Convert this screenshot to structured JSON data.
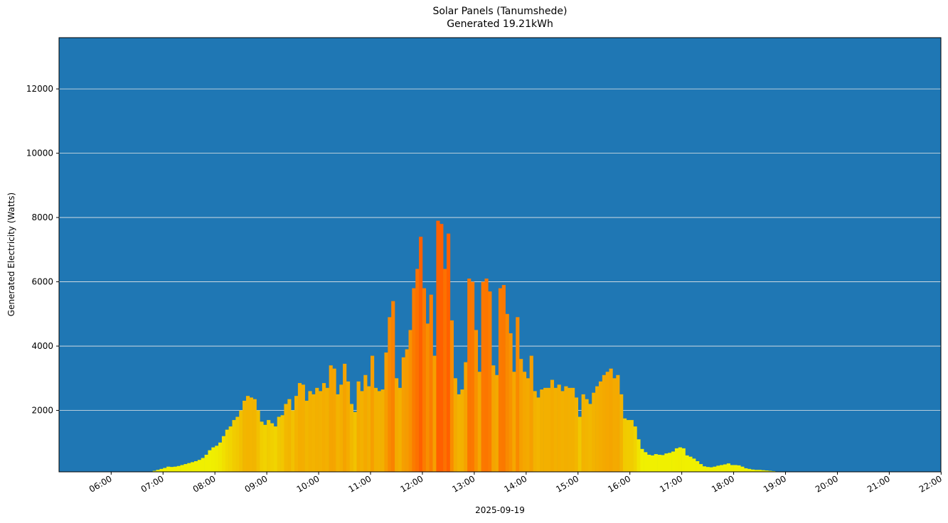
{
  "header": {
    "title_line1": "Solar Panels (Tanumshede)",
    "title_line2": "Generated 19.21kWh"
  },
  "axes": {
    "ylabel": "Generated Electricity (Watts)",
    "xlabel": "2025-09-19",
    "background_color": "#1f77b4",
    "grid_color": "#e8e8e8"
  },
  "colors": {
    "low": "#f0f000",
    "mid": "#f2b800",
    "high": "#ff6000"
  },
  "chart_data": {
    "type": "bar",
    "title": "Solar Panels (Tanumshede)\nGenerated 19.21kWh",
    "subtitle": "Generated 19.21kWh",
    "xlabel": "2025-09-19",
    "ylabel": "Generated Electricity (Watts)",
    "ylim": [
      90,
      13500
    ],
    "xlim": [
      "05:00",
      "22:00"
    ],
    "grid": "y-axis, white lines",
    "legend": null,
    "y_ticks": [
      2000,
      4000,
      6000,
      8000,
      10000,
      12000
    ],
    "x_ticks": [
      "06:00",
      "07:00",
      "08:00",
      "09:00",
      "10:00",
      "11:00",
      "12:00",
      "13:00",
      "14:00",
      "15:00",
      "16:00",
      "17:00",
      "18:00",
      "19:00",
      "20:00",
      "21:00",
      "22:00"
    ],
    "total_generated_kwh": 19.21,
    "interval_minutes": 4,
    "start_time": "06:44",
    "values": [
      100,
      120,
      150,
      180,
      210,
      250,
      240,
      250,
      270,
      300,
      330,
      360,
      390,
      420,
      460,
      520,
      620,
      760,
      850,
      900,
      1000,
      1200,
      1400,
      1500,
      1700,
      1800,
      2000,
      2300,
      2450,
      2400,
      2350,
      2000,
      1650,
      1550,
      1700,
      1600,
      1500,
      1800,
      1850,
      2200,
      2350,
      2000,
      2450,
      2850,
      2800,
      2300,
      2600,
      2500,
      2700,
      2600,
      2850,
      2700,
      3400,
      3300,
      2500,
      2800,
      3450,
      2900,
      2200,
      1950,
      2900,
      2600,
      3100,
      2750,
      3700,
      2700,
      2600,
      2650,
      3800,
      4900,
      5400,
      3000,
      2700,
      3650,
      3900,
      4500,
      5800,
      6400,
      7400,
      5800,
      4700,
      5600,
      3700,
      7900,
      7800,
      6400,
      7500,
      4800,
      3000,
      2500,
      2650,
      3500,
      6100,
      6000,
      4500,
      3200,
      6000,
      6100,
      5700,
      3400,
      3100,
      5800,
      5900,
      5000,
      4400,
      3200,
      4900,
      3600,
      3200,
      3000,
      3700,
      2600,
      2400,
      2650,
      2700,
      2700,
      2950,
      2700,
      2800,
      2600,
      2750,
      2700,
      2700,
      2400,
      1800,
      2500,
      2350,
      2200,
      2550,
      2750,
      2900,
      3100,
      3200,
      3300,
      3000,
      3100,
      2500,
      1750,
      1700,
      1700,
      1500,
      1100,
      800,
      700,
      620,
      600,
      640,
      620,
      610,
      660,
      680,
      720,
      820,
      850,
      820,
      600,
      560,
      500,
      420,
      330,
      260,
      240,
      230,
      250,
      280,
      300,
      320,
      350,
      300,
      300,
      290,
      250,
      200,
      180,
      160,
      150,
      150,
      140,
      130,
      120,
      110,
      100,
      100,
      100,
      90,
      90,
      90,
      90,
      90,
      90,
      90,
      90,
      90,
      90,
      90,
      90
    ]
  }
}
